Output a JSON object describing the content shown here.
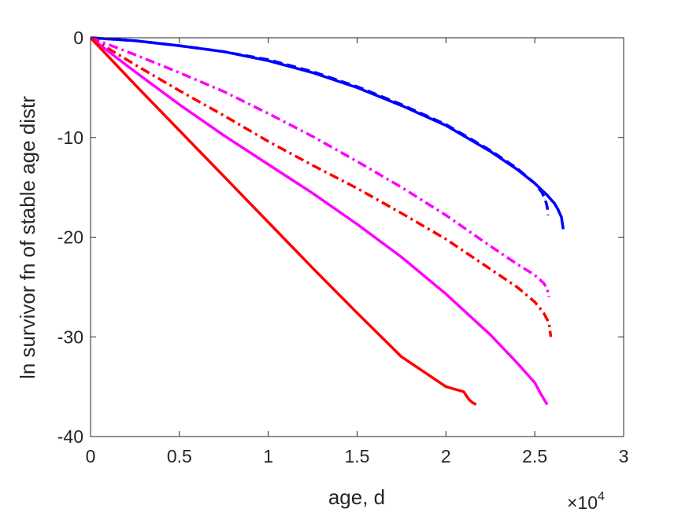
{
  "chart_data": {
    "type": "line",
    "xlabel": "age, d",
    "ylabel": "ln survivor fn of stable age distr",
    "x_exponent_label": "×10",
    "x_exponent_power": "4",
    "xlim": [
      0,
      30000
    ],
    "ylim": [
      -40,
      0
    ],
    "xticks": [
      0,
      5000,
      10000,
      15000,
      20000,
      25000,
      30000
    ],
    "xtick_labels": [
      "0",
      "0.5",
      "1",
      "1.5",
      "2",
      "2.5",
      "3"
    ],
    "yticks": [
      -40,
      -30,
      -20,
      -10,
      0
    ],
    "ytick_labels": [
      "-40",
      "-30",
      "-20",
      "-10",
      "0"
    ],
    "grid": false,
    "series": [
      {
        "color": "#0000ff",
        "dash": "solid",
        "x": [
          0,
          2500,
          5000,
          7500,
          10000,
          12500,
          15000,
          17500,
          20000,
          22500,
          24000,
          25000,
          25700,
          26100,
          26300,
          26500,
          26600
        ],
        "y": [
          0,
          -0.3,
          -0.8,
          -1.4,
          -2.3,
          -3.5,
          -5.0,
          -6.8,
          -8.8,
          -11.4,
          -13.2,
          -14.6,
          -15.8,
          -16.6,
          -17.2,
          -18.0,
          -19.2
        ]
      },
      {
        "color": "#0000ff",
        "dash": "dashed",
        "x": [
          0,
          2500,
          5000,
          7500,
          10000,
          12500,
          15000,
          17500,
          20000,
          22500,
          24000,
          25000,
          25400,
          25600,
          25700,
          25750
        ],
        "y": [
          0,
          -0.3,
          -0.8,
          -1.4,
          -2.2,
          -3.4,
          -4.9,
          -6.7,
          -8.7,
          -11.3,
          -13.1,
          -14.6,
          -15.5,
          -16.3,
          -17.0,
          -17.8
        ]
      },
      {
        "color": "#ff00ff",
        "dash": "dashdot",
        "x": [
          0,
          2500,
          5000,
          7500,
          10000,
          12500,
          15000,
          17500,
          20000,
          22500,
          24000,
          25000,
          25500,
          25700,
          25800
        ],
        "y": [
          0,
          -1.7,
          -3.5,
          -5.4,
          -7.6,
          -9.9,
          -12.4,
          -15.0,
          -17.8,
          -20.9,
          -22.7,
          -23.8,
          -24.6,
          -25.2,
          -26.0
        ]
      },
      {
        "color": "#ff0000",
        "dash": "dashdot",
        "x": [
          0,
          2500,
          5000,
          7500,
          10000,
          12500,
          15000,
          17500,
          20000,
          22500,
          24000,
          25000,
          25500,
          25800,
          25900
        ],
        "y": [
          0,
          -2.7,
          -5.3,
          -7.8,
          -10.4,
          -12.8,
          -15.1,
          -17.6,
          -20.2,
          -23.2,
          -25.0,
          -26.5,
          -27.6,
          -28.6,
          -30.0
        ]
      },
      {
        "color": "#ff00ff",
        "dash": "solid",
        "x": [
          0,
          2500,
          5000,
          7500,
          10000,
          12500,
          15000,
          17500,
          20000,
          22500,
          24000,
          25000,
          25300,
          25500,
          25700
        ],
        "y": [
          0,
          -3.4,
          -6.7,
          -9.8,
          -12.7,
          -15.6,
          -18.7,
          -22.0,
          -25.7,
          -29.8,
          -32.6,
          -34.6,
          -35.6,
          -36.2,
          -36.8
        ]
      },
      {
        "color": "#ff0000",
        "dash": "solid",
        "x": [
          0,
          2500,
          5000,
          7500,
          10000,
          12500,
          15000,
          17500,
          20000,
          21000,
          21300,
          21500,
          21700
        ],
        "y": [
          0,
          -4.7,
          -9.3,
          -13.9,
          -18.5,
          -23.1,
          -27.6,
          -32.0,
          -35.0,
          -35.5,
          -36.3,
          -36.6,
          -36.8
        ]
      }
    ]
  }
}
